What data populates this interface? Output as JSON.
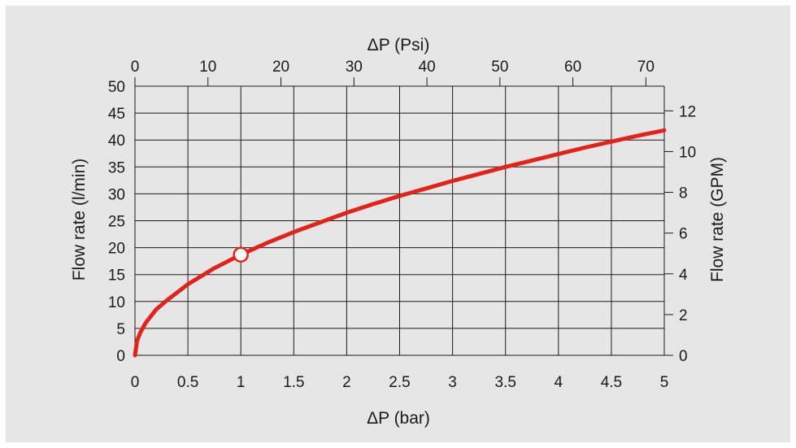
{
  "colors": {
    "background": "#e6e6e6",
    "grid": "#1a1a1a",
    "curve": "#e2231a",
    "marker_fill": "#ffffff"
  },
  "chart_data": {
    "type": "line",
    "title": "",
    "xlabel": "ΔP (bar)",
    "x2label": "ΔP (Psi)",
    "ylabel": "Flow rate (l/min)",
    "y2label": "Flow rate (GPM)",
    "xlim": [
      0,
      5
    ],
    "ylim": [
      0,
      50
    ],
    "x2lim": [
      0,
      72.52
    ],
    "y2lim": [
      0,
      13.21
    ],
    "grid": true,
    "x_ticks": [
      0,
      0.5,
      1,
      1.5,
      2,
      2.5,
      3,
      3.5,
      4,
      4.5,
      5
    ],
    "x_tick_labels": [
      "0",
      "0.5",
      "1",
      "1.5",
      "2",
      "2.5",
      "3",
      "3.5",
      "4",
      "4.5",
      "5"
    ],
    "y_ticks": [
      0,
      5,
      10,
      15,
      20,
      25,
      30,
      35,
      40,
      45,
      50
    ],
    "y_tick_labels": [
      "0",
      "5",
      "10",
      "15",
      "20",
      "25",
      "30",
      "35",
      "40",
      "45",
      "50"
    ],
    "x2_ticks": [
      0,
      10,
      20,
      30,
      40,
      50,
      60,
      70
    ],
    "x2_tick_labels": [
      "0",
      "10",
      "20",
      "30",
      "40",
      "50",
      "60",
      "70"
    ],
    "y2_ticks": [
      0,
      2,
      4,
      6,
      8,
      10,
      12
    ],
    "y2_tick_labels": [
      "0",
      "2",
      "4",
      "6",
      "8",
      "10",
      "12"
    ],
    "series": [
      {
        "x": [
          0,
          0.02,
          0.05,
          0.1,
          0.2,
          0.3,
          0.5,
          0.75,
          1,
          1.25,
          1.5,
          1.75,
          2,
          2.25,
          2.5,
          2.75,
          3,
          3.25,
          3.5,
          3.75,
          4,
          4.25,
          4.5,
          4.75,
          5
        ],
        "values": [
          0,
          2.7,
          4.2,
          6.0,
          8.5,
          10.2,
          13.2,
          16.2,
          18.7,
          20.9,
          22.9,
          24.7,
          26.5,
          28.1,
          29.6,
          31.0,
          32.4,
          33.7,
          35.0,
          36.2,
          37.4,
          38.6,
          39.7,
          40.8,
          41.8
        ]
      }
    ],
    "highlight_point": {
      "x": 1,
      "y": 18.7
    }
  }
}
